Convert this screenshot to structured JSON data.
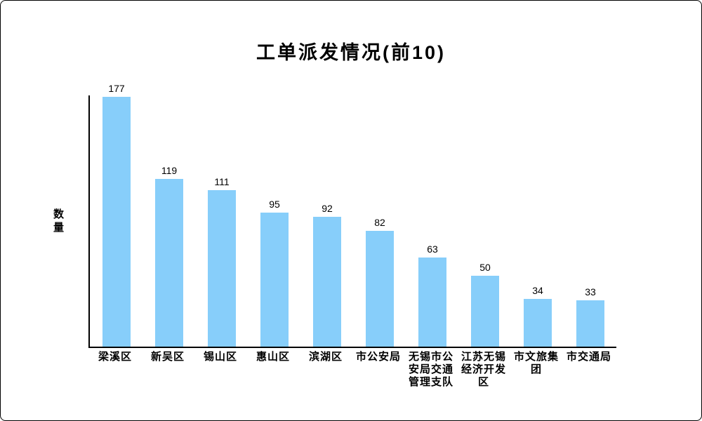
{
  "window": {
    "background": "#ffffff",
    "border_color": "#000000"
  },
  "chart_data": {
    "type": "bar",
    "title": "工单派发情况(前10)",
    "ylabel": "数量",
    "xlabel": "",
    "categories": [
      "梁溪区",
      "新吴区",
      "锡山区",
      "惠山区",
      "滨湖区",
      "市公安局",
      "无锡市公安局交通管理支队",
      "江苏无锡经济开发区",
      "市文旅集团",
      "市交通局"
    ],
    "values": [
      177,
      119,
      111,
      95,
      92,
      82,
      63,
      50,
      34,
      33
    ],
    "bar_color": "#87CEFA",
    "axis_color": "#000000",
    "text_color": "#000000",
    "ylim": [
      0,
      177
    ],
    "grid": false,
    "legend": "none",
    "value_labels_shown": true
  }
}
